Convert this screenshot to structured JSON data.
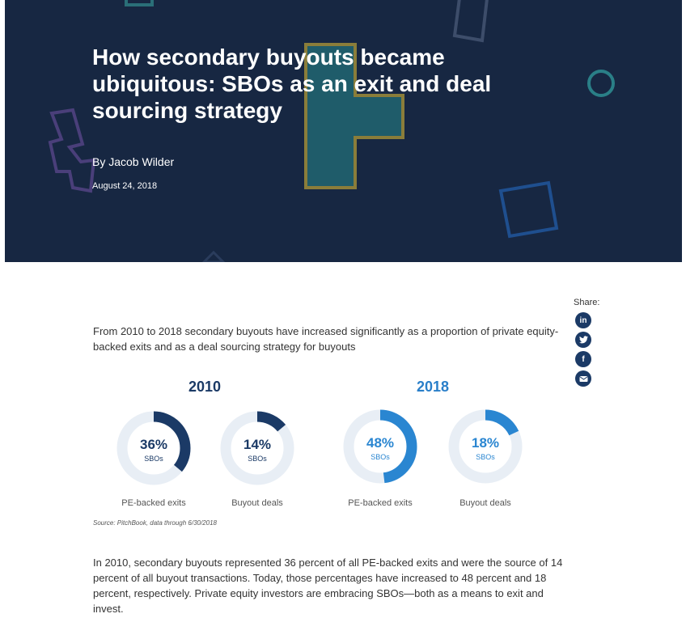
{
  "hero": {
    "title": "How secondary buyouts became ubiquitous: SBOs as an exit and deal sourcing strategy",
    "author": "By Jacob Wilder",
    "date": "August 24, 2018"
  },
  "share": {
    "label": "Share:",
    "icons": [
      "linkedin-icon",
      "twitter-icon",
      "facebook-icon",
      "email-icon"
    ],
    "glyphs": {
      "linkedin": "in",
      "facebook": "f"
    }
  },
  "intro": "From 2010 to 2018 secondary buyouts have increased significantly as a proportion of private equity-backed exits and as a deal sourcing strategy for buyouts",
  "chart_data": {
    "type": "donut",
    "groups": [
      {
        "year": "2010",
        "color": "#1b3a66",
        "items": [
          {
            "label": "PE-backed exits",
            "value": 36,
            "display": "36%",
            "sub": "SBOs"
          },
          {
            "label": "Buyout deals",
            "value": 14,
            "display": "14%",
            "sub": "SBOs"
          }
        ]
      },
      {
        "year": "2018",
        "color": "#2a86d1",
        "items": [
          {
            "label": "PE-backed exits",
            "value": 48,
            "display": "48%",
            "sub": "SBOs"
          },
          {
            "label": "Buyout deals",
            "value": 18,
            "display": "18%",
            "sub": "SBOs"
          }
        ]
      }
    ],
    "track_color": "#e8eef5"
  },
  "source": "Source: PitchBook, data through 6/30/2018",
  "body": "In 2010, secondary buyouts represented 36 percent of all PE-backed exits and were the source of 14 percent of all buyout transactions. Today, those percentages have increased to 48 percent and 18 percent, respectively. Private equity investors are embracing SBOs—both as a means to exit and invest."
}
